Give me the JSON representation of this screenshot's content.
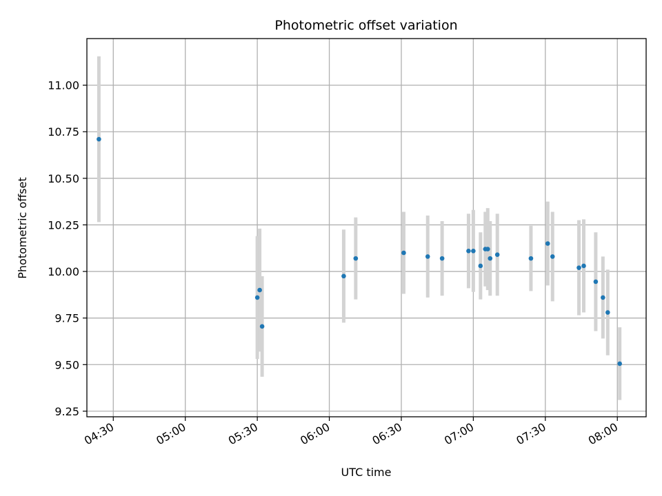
{
  "chart_data": {
    "type": "scatter",
    "title": "Photometric offset variation",
    "xlabel": "UTC time",
    "ylabel": "Photometric offset",
    "x_ticks": [
      "04:30",
      "05:00",
      "05:30",
      "06:00",
      "06:30",
      "07:00",
      "07:30",
      "08:00"
    ],
    "y_ticks": [
      "9.25",
      "9.50",
      "9.75",
      "10.00",
      "10.25",
      "10.50",
      "10.75",
      "11.00"
    ],
    "xlim": [
      "04:19",
      "08:12"
    ],
    "ylim": [
      9.22,
      11.25
    ],
    "grid": true,
    "colors": {
      "point": "#1f77b4",
      "errorbar": "#d3d3d3",
      "grid": "#b0b0b0"
    },
    "points": [
      {
        "x": "04:24",
        "y": 10.71,
        "err": 0.445
      },
      {
        "x": "05:30",
        "y": 9.86,
        "err": 0.33
      },
      {
        "x": "05:31",
        "y": 9.9,
        "err": 0.33
      },
      {
        "x": "05:32",
        "y": 9.705,
        "err": 0.27
      },
      {
        "x": "06:06",
        "y": 9.975,
        "err": 0.25
      },
      {
        "x": "06:11",
        "y": 10.07,
        "err": 0.22
      },
      {
        "x": "06:31",
        "y": 10.1,
        "err": 0.22
      },
      {
        "x": "06:41",
        "y": 10.08,
        "err": 0.22
      },
      {
        "x": "06:47",
        "y": 10.07,
        "err": 0.2
      },
      {
        "x": "06:58",
        "y": 10.11,
        "err": 0.2
      },
      {
        "x": "07:00",
        "y": 10.11,
        "err": 0.22
      },
      {
        "x": "07:03",
        "y": 10.03,
        "err": 0.18
      },
      {
        "x": "07:05",
        "y": 10.12,
        "err": 0.2
      },
      {
        "x": "07:06",
        "y": 10.12,
        "err": 0.22
      },
      {
        "x": "07:07",
        "y": 10.07,
        "err": 0.2
      },
      {
        "x": "07:10",
        "y": 10.09,
        "err": 0.22
      },
      {
        "x": "07:24",
        "y": 10.07,
        "err": 0.175
      },
      {
        "x": "07:31",
        "y": 10.15,
        "err": 0.225
      },
      {
        "x": "07:33",
        "y": 10.08,
        "err": 0.24
      },
      {
        "x": "07:44",
        "y": 10.02,
        "err": 0.255
      },
      {
        "x": "07:46",
        "y": 10.03,
        "err": 0.25
      },
      {
        "x": "07:51",
        "y": 9.945,
        "err": 0.265
      },
      {
        "x": "07:54",
        "y": 9.86,
        "err": 0.22
      },
      {
        "x": "07:56",
        "y": 9.78,
        "err": 0.23
      },
      {
        "x": "08:01",
        "y": 9.505,
        "err": 0.195
      }
    ]
  }
}
